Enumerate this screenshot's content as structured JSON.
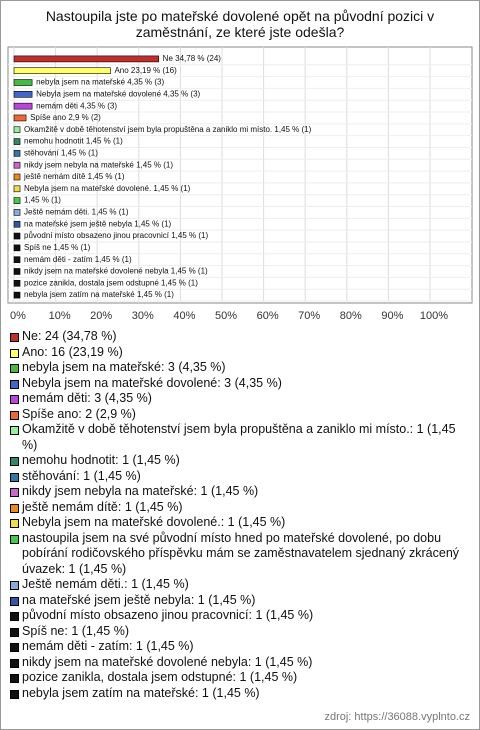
{
  "chart_data": {
    "type": "bar",
    "orientation": "horizontal",
    "title": "Nastoupila jste po mateřské dovolené opět na původní pozici v zaměstnání, ze které jste odešla?",
    "values": [
      34.78,
      23.19,
      4.35,
      4.35,
      4.35,
      2.9,
      1.45,
      1.45,
      1.45,
      1.45,
      1.45,
      1.45,
      1.45,
      1.45,
      1.45,
      1.45,
      1.45,
      1.45,
      1.45,
      1.45,
      1.45
    ],
    "value_labels": [
      "Ne 34,78 % (24)",
      "Ano 23,19 % (16)",
      "nebyla jsem na mateřské 4,35 % (3)",
      "Nebyla jsem na mateřské dovolené 4,35 % (3)",
      "nemám děti 4,35 % (3)",
      "Spíše ano 2,9 % (2)",
      "Okamžitě v době těhotenství jsem byla propuštěna a zaniklo mi místo. 1,45 % (1)",
      "nemohu hodnotit 1,45 % (1)",
      "stěhování 1,45 % (1)",
      "nikdy jsem nebyla  na mateřské 1,45 % (1)",
      "ještě nemám dítě 1,45 % (1)",
      "Nebyla jsem na mateřské dovolené. 1,45 % (1)",
      "1,45 % (1)",
      "Ještě nemám děti. 1,45 % (1)",
      "na mateřské jsem ještě nebyla 1,45 % (1)",
      "původní místo obsazeno jinou pracovnicí 1,45 % (1)",
      "Spíš ne 1,45 % (1)",
      "nemám děti - zatím 1,45 % (1)",
      "nikdy jsem na mateřské dovolené nebyla 1,45 % (1)",
      "pozice zanikla, dostala jsem odstupné 1,45 % (1)",
      "nebyla jsem zatím na mateřské 1,45 % (1)"
    ],
    "colors": [
      "#c0302b",
      "#ffff66",
      "#44bb44",
      "#4466cc",
      "#bb44dd",
      "#ee6633",
      "#99ee99",
      "#338866",
      "#3377aa",
      "#cc66cc",
      "#ee8822",
      "#eedd44",
      "#44cc44",
      "#88aadd",
      "#3355aa",
      "#111111",
      "#111111",
      "#111111",
      "#111111",
      "#111111",
      "#111111"
    ],
    "legend": [
      "Ne: 24 (34,78 %)",
      "Ano: 16 (23,19 %)",
      "nebyla jsem na mateřské: 3 (4,35 %)",
      "Nebyla jsem na mateřské dovolené: 3 (4,35 %)",
      "nemám děti: 3 (4,35 %)",
      "Spíše ano: 2 (2,9 %)",
      "Okamžitě v době těhotenství jsem byla propuštěna a zaniklo mi místo.: 1 (1,45 %)",
      "nemohu hodnotit: 1 (1,45 %)",
      "stěhování: 1 (1,45 %)",
      "nikdy jsem nebyla  na mateřské: 1 (1,45 %)",
      "ještě nemám dítě: 1 (1,45 %)",
      "Nebyla jsem na mateřské dovolené.: 1 (1,45 %)",
      "nastoupila jsem na své původní místo hned po mateřské dovolené, po dobu pobírání rodičovského příspěvku mám se zaměstnavatelem sjednaný zkrácený úvazek: 1 (1,45 %)",
      "Ještě nemám děti.: 1 (1,45 %)",
      "na mateřské jsem ještě nebyla: 1 (1,45 %)",
      "původní místo obsazeno jinou pracovnicí: 1 (1,45 %)",
      "Spíš ne: 1 (1,45 %)",
      "nemám děti - zatím: 1 (1,45 %)",
      "nikdy jsem na mateřské dovolené nebyla: 1 (1,45 %)",
      "pozice zanikla, dostala jsem odstupné: 1 (1,45 %)",
      "nebyla jsem zatím na mateřské: 1 (1,45 %)"
    ],
    "xlim": [
      0,
      100
    ],
    "xticks": [
      {
        "value": 0,
        "label": "0%"
      },
      {
        "value": 10,
        "label": "10%"
      },
      {
        "value": 20,
        "label": "20%"
      },
      {
        "value": 30,
        "label": "30%"
      },
      {
        "value": 40,
        "label": "40%"
      },
      {
        "value": 50,
        "label": "50%"
      },
      {
        "value": 60,
        "label": "60%"
      },
      {
        "value": 70,
        "label": "70%"
      },
      {
        "value": 80,
        "label": "80%"
      },
      {
        "value": 90,
        "label": "90%"
      },
      {
        "value": 100,
        "label": "100%"
      }
    ],
    "grid": true,
    "source": "zdroj: https://36088.vyplnto.cz"
  }
}
